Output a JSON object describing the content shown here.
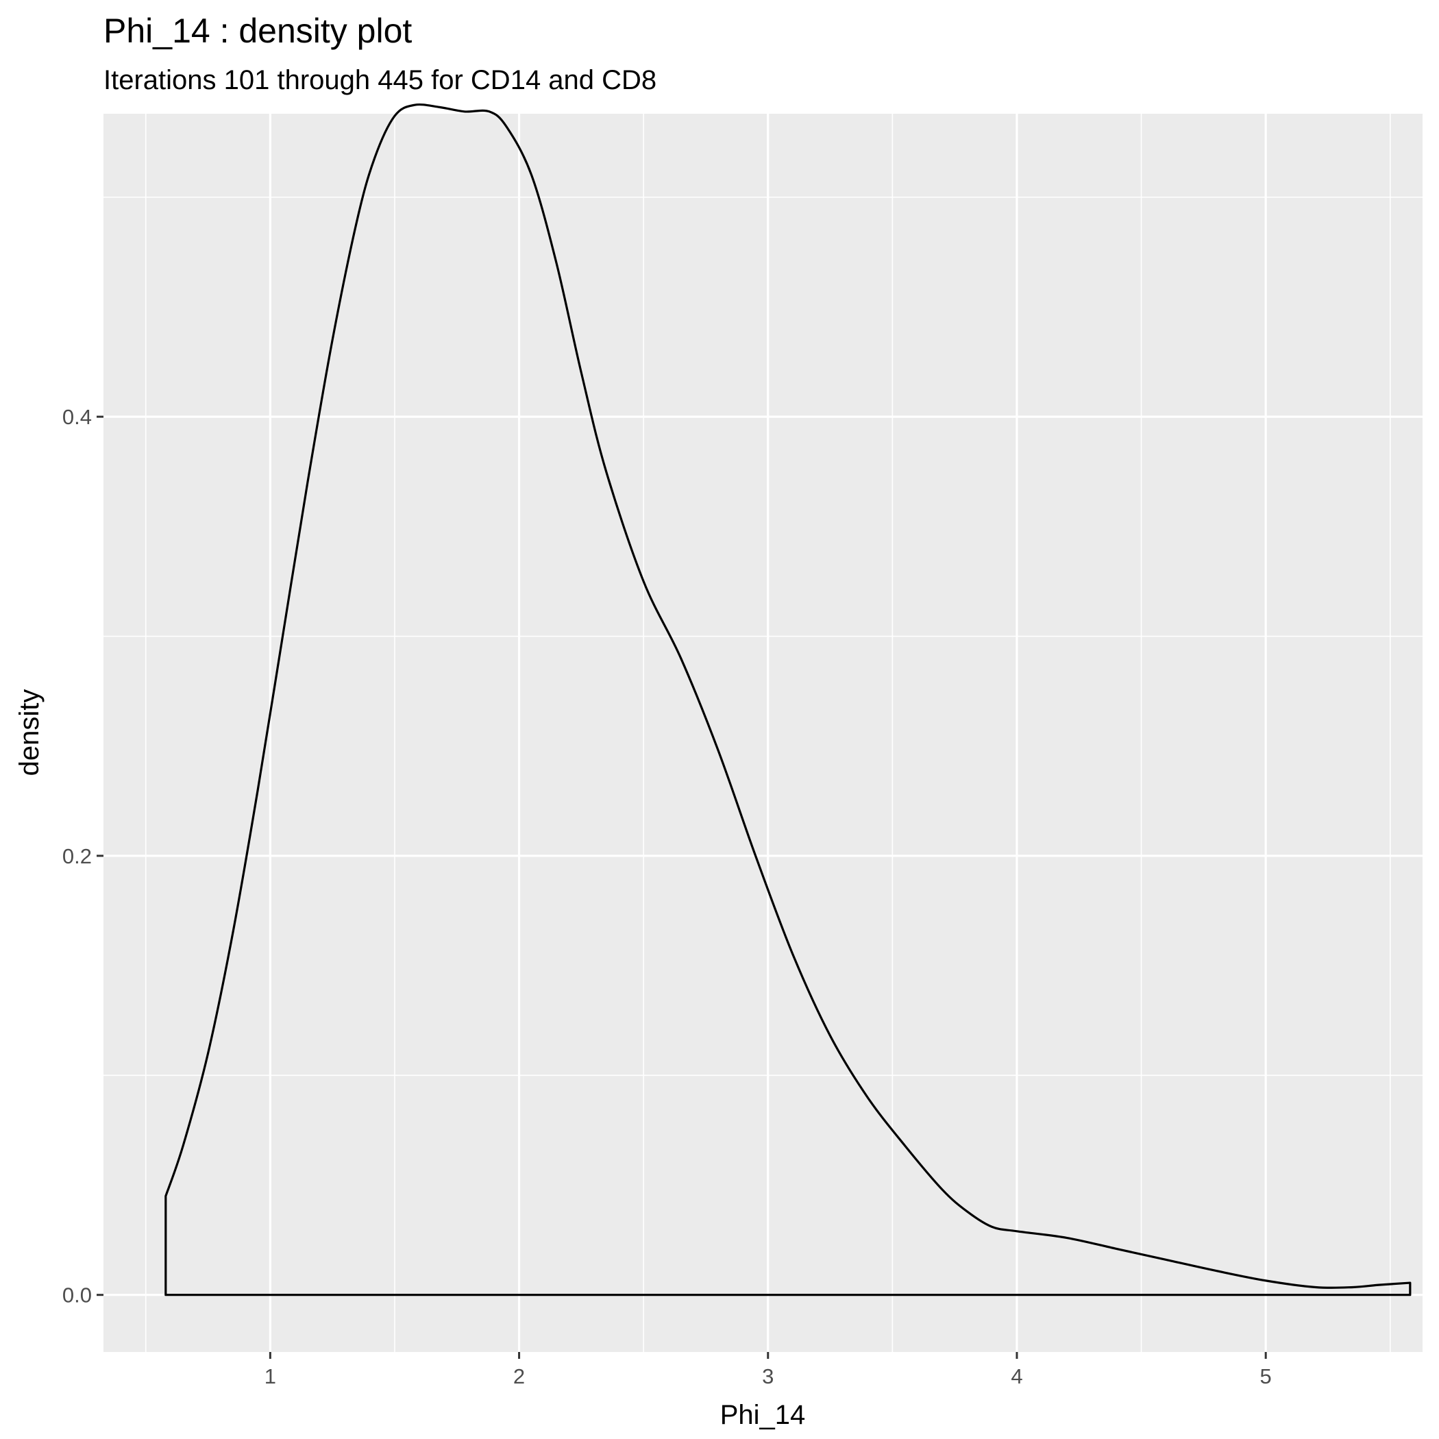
{
  "chart_data": {
    "type": "area",
    "title": "Phi_14 : density plot",
    "subtitle": "Iterations 101 through 445 for CD14 and CD8",
    "xlabel": "Phi_14",
    "ylabel": "density",
    "xlim": [
      0.33,
      5.63
    ],
    "ylim": [
      -0.026,
      0.538
    ],
    "x_ticks": [
      1,
      2,
      3,
      4,
      5
    ],
    "x_tick_labels": [
      "1",
      "2",
      "3",
      "4",
      "5"
    ],
    "x_minor_breaks": [
      0.5,
      1.5,
      2.5,
      3.5,
      4.5,
      5.5
    ],
    "y_ticks": [
      0.0,
      0.2,
      0.4
    ],
    "y_tick_labels": [
      "0.0",
      "0.2",
      "0.4"
    ],
    "y_minor_breaks": [
      0.1,
      0.3,
      0.5
    ],
    "grid": true,
    "panel_background": "#ebebeb",
    "grid_color": "#ffffff",
    "line_color": "#000000",
    "fill": "none",
    "series": [
      {
        "x": [
          0.58,
          0.65,
          0.75,
          0.85,
          0.95,
          1.05,
          1.15,
          1.25,
          1.35,
          1.42,
          1.5,
          1.58,
          1.68,
          1.78,
          1.88,
          1.95,
          2.05,
          2.15,
          2.25,
          2.35,
          2.5,
          2.65,
          2.8,
          2.95,
          3.1,
          3.25,
          3.4,
          3.55,
          3.7,
          3.8,
          3.9,
          4.0,
          4.2,
          4.4,
          4.6,
          4.8,
          5.0,
          5.2,
          5.35,
          5.45,
          5.58
        ],
        "y": [
          0.045,
          0.068,
          0.11,
          0.165,
          0.23,
          0.3,
          0.37,
          0.435,
          0.49,
          0.518,
          0.537,
          0.542,
          0.541,
          0.539,
          0.539,
          0.532,
          0.51,
          0.47,
          0.42,
          0.375,
          0.325,
          0.29,
          0.248,
          0.2,
          0.155,
          0.118,
          0.09,
          0.068,
          0.048,
          0.038,
          0.031,
          0.029,
          0.026,
          0.021,
          0.016,
          0.011,
          0.0065,
          0.0035,
          0.0035,
          0.0045,
          0.0055
        ]
      }
    ]
  }
}
